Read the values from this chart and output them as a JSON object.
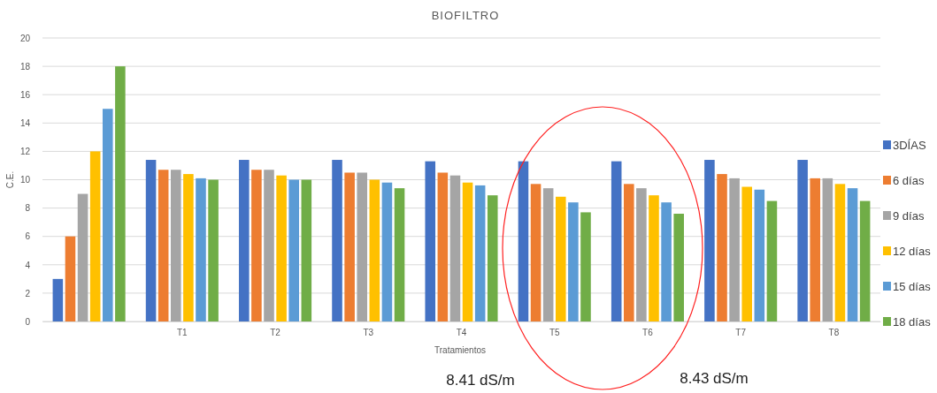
{
  "chart_data": {
    "type": "bar",
    "title": "BIOFILTRO",
    "xlabel": "Tratamientos",
    "ylabel": "C.E.",
    "categories": [
      null,
      "T1",
      "T2",
      "T3",
      "T4",
      "T5",
      "T6",
      "T7",
      "T8"
    ],
    "series": [
      {
        "name": "3DÍAS",
        "color": "#4472c4",
        "values": [
          3,
          11.4,
          11.4,
          11.4,
          11.3,
          11.3,
          11.3,
          11.4,
          11.4
        ]
      },
      {
        "name": "6 días",
        "color": "#ed7d31",
        "values": [
          6,
          10.7,
          10.7,
          10.5,
          10.5,
          9.7,
          9.7,
          10.4,
          10.1
        ]
      },
      {
        "name": "9 días",
        "color": "#a5a5a5",
        "values": [
          9,
          10.7,
          10.7,
          10.5,
          10.3,
          9.4,
          9.4,
          10.1,
          10.1
        ]
      },
      {
        "name": "12 días",
        "color": "#ffc000",
        "values": [
          12,
          10.4,
          10.3,
          10.0,
          9.8,
          8.8,
          8.9,
          9.5,
          9.7
        ]
      },
      {
        "name": "15 días",
        "color": "#5b9bd5",
        "values": [
          15,
          10.1,
          10.0,
          9.8,
          9.6,
          8.4,
          8.4,
          9.3,
          9.4
        ]
      },
      {
        "name": "18 días",
        "color": "#70ad47",
        "values": [
          18,
          10.0,
          10.0,
          9.4,
          8.9,
          7.7,
          7.6,
          8.5,
          8.5
        ]
      }
    ],
    "ylim": [
      0,
      20
    ],
    "yticks": [
      0,
      2,
      4,
      6,
      8,
      10,
      12,
      14,
      16,
      18,
      20
    ],
    "grid": "y",
    "legend": "right",
    "annotations": [
      "8.41 dS/m",
      "8.43 dS/m"
    ]
  }
}
